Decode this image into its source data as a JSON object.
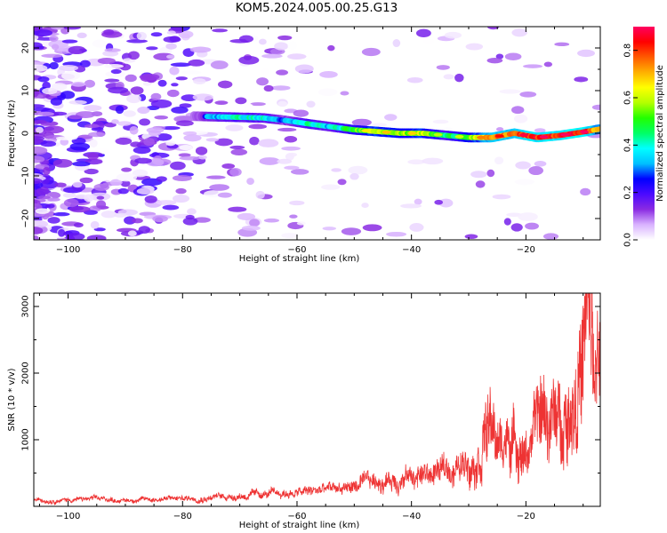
{
  "title": "KOM5.2024.005.00.25.G13",
  "chart_data": [
    {
      "type": "heatmap",
      "name": "spectrogram",
      "xlabel": "Height of straight line (km)",
      "ylabel": "Frequency (Hz)",
      "xlim": [
        -106,
        -7
      ],
      "ylim": [
        -25,
        25
      ],
      "xticks": [
        -100,
        -80,
        -60,
        -40,
        -20
      ],
      "yticks": [
        -20,
        -10,
        0,
        10,
        20
      ],
      "colorbar": {
        "label": "Normalized spectral amplitude",
        "range": [
          0,
          0.9
        ],
        "ticks": [
          0.0,
          0.2,
          0.4,
          0.6,
          0.8
        ],
        "colormap": [
          "#ffffff",
          "#d9b3ff",
          "#8a2be2",
          "#4b0aff",
          "#0000ff",
          "#00bfff",
          "#00ffff",
          "#00ff66",
          "#22ff00",
          "#b4ff00",
          "#ffff00",
          "#ffb000",
          "#ff5a00",
          "#ff0000",
          "#ff0060"
        ]
      },
      "signal_track": {
        "heights_km": [
          -78,
          -72,
          -66,
          -62,
          -58,
          -54,
          -50,
          -46,
          -42,
          -38,
          -34,
          -30,
          -26,
          -22,
          -18,
          -14,
          -10,
          -7
        ],
        "freq_hz": [
          4.0,
          3.8,
          3.6,
          3.0,
          2.2,
          1.5,
          0.8,
          0.4,
          0.0,
          0.0,
          -0.5,
          -1.0,
          -1.0,
          0.0,
          -1.0,
          -0.5,
          0.3,
          1.0
        ],
        "amplitude": [
          0.22,
          0.4,
          0.38,
          0.28,
          0.42,
          0.35,
          0.5,
          0.62,
          0.55,
          0.6,
          0.42,
          0.55,
          0.72,
          0.75,
          0.82,
          0.8,
          0.85,
          0.65
        ]
      }
    },
    {
      "type": "line",
      "name": "snr",
      "xlabel": "Height of straight line (km)",
      "ylabel": "SNR (10 * v/v)",
      "xlim": [
        -106,
        -7
      ],
      "ylim": [
        0,
        3200
      ],
      "xticks": [
        -100,
        -80,
        -60,
        -40,
        -20
      ],
      "yticks": [
        1000,
        2000,
        3000
      ],
      "color": "#ee3333",
      "series": [
        {
          "x": [
            -106,
            -100,
            -95,
            -90,
            -85,
            -80,
            -75,
            -70,
            -65,
            -60,
            -55,
            -50,
            -45,
            -40,
            -37,
            -34,
            -31,
            -28,
            -27,
            -25,
            -22,
            -20,
            -17,
            -14,
            -12,
            -10,
            -9,
            -8,
            -7
          ],
          "y": [
            90,
            100,
            110,
            90,
            110,
            120,
            140,
            160,
            180,
            200,
            250,
            300,
            380,
            450,
            480,
            550,
            600,
            900,
            1350,
            900,
            1000,
            800,
            1400,
            1250,
            1650,
            2200,
            3100,
            1700,
            2350
          ]
        }
      ]
    }
  ]
}
